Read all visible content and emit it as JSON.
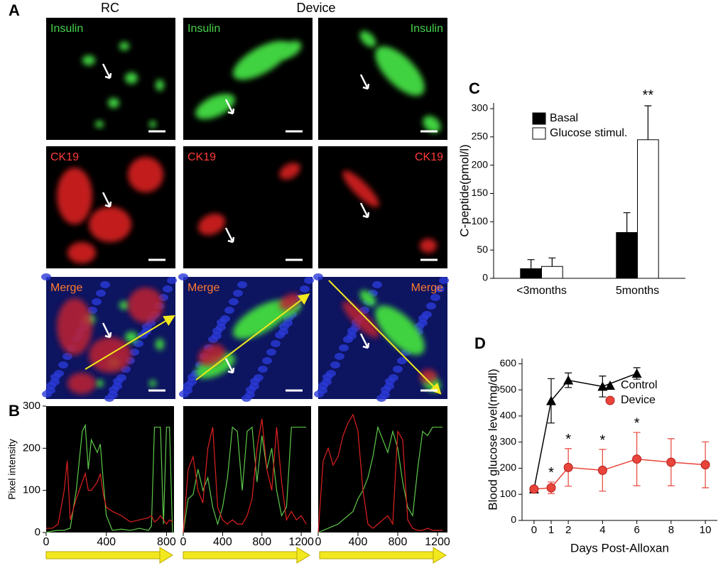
{
  "figure": {
    "panel_labels": [
      "A",
      "B",
      "C",
      "D"
    ],
    "columns": [
      "RC",
      "Device"
    ],
    "image_labels": [
      [
        "Insulin",
        "Insulin",
        "Insulin"
      ],
      [
        "CK19",
        "CK19",
        "CK19"
      ],
      [
        "Merge",
        "Merge",
        "Merge"
      ]
    ]
  },
  "chart_data": [
    {
      "type": "line",
      "ylabel": "Pixel intensity",
      "background": "#000000",
      "x": [
        0,
        40,
        80,
        120,
        140,
        160,
        200,
        240,
        260,
        280,
        300,
        340,
        360,
        380,
        400,
        440,
        500,
        560,
        620,
        680,
        700,
        720,
        740,
        760,
        780,
        800,
        820,
        840
      ],
      "series": [
        {
          "color": "#5ec94a",
          "values": [
            0,
            3,
            5,
            5,
            8,
            10,
            100,
            240,
            255,
            150,
            220,
            190,
            210,
            120,
            40,
            5,
            8,
            5,
            10,
            5,
            15,
            250,
            250,
            250,
            20,
            250,
            250,
            0
          ]
        },
        {
          "color": "#e02020",
          "values": [
            10,
            10,
            20,
            100,
            170,
            30,
            80,
            120,
            140,
            100,
            100,
            120,
            140,
            90,
            60,
            50,
            40,
            25,
            30,
            35,
            40,
            25,
            30,
            40,
            30,
            20,
            30,
            25
          ]
        }
      ],
      "xlim": [
        0,
        850
      ],
      "xticks": [
        0,
        400,
        800
      ],
      "ylim": [
        0,
        300
      ],
      "yticks": [
        0,
        100,
        200,
        300
      ]
    },
    {
      "type": "line",
      "background": "#000000",
      "x": [
        0,
        50,
        100,
        150,
        200,
        250,
        300,
        350,
        400,
        450,
        500,
        550,
        600,
        650,
        700,
        750,
        800,
        850,
        900,
        950,
        1000,
        1050,
        1100,
        1150,
        1200,
        1250
      ],
      "series": [
        {
          "color": "#5ec94a",
          "values": [
            0,
            80,
            90,
            150,
            100,
            130,
            60,
            20,
            60,
            130,
            250,
            240,
            100,
            240,
            250,
            120,
            230,
            150,
            200,
            100,
            40,
            60,
            250,
            250,
            250,
            250
          ]
        },
        {
          "color": "#e02020",
          "values": [
            0,
            150,
            180,
            100,
            70,
            200,
            250,
            60,
            30,
            20,
            30,
            20,
            20,
            40,
            80,
            200,
            270,
            150,
            100,
            250,
            120,
            30,
            50,
            30,
            40,
            20
          ]
        }
      ],
      "xlim": [
        0,
        1300
      ],
      "xticks": [
        0,
        400,
        800,
        1200
      ],
      "ylim": [
        0,
        300
      ]
    },
    {
      "type": "line",
      "background": "#000000",
      "x": [
        0,
        50,
        100,
        150,
        200,
        250,
        300,
        350,
        400,
        450,
        500,
        550,
        600,
        650,
        700,
        750,
        800,
        850,
        900,
        950,
        1000,
        1050,
        1100,
        1150,
        1200,
        1250
      ],
      "series": [
        {
          "color": "#5ec94a",
          "values": [
            0,
            5,
            10,
            15,
            20,
            30,
            40,
            50,
            80,
            100,
            130,
            180,
            250,
            220,
            190,
            240,
            200,
            120,
            60,
            40,
            150,
            240,
            230,
            250,
            250,
            250
          ]
        },
        {
          "color": "#e02020",
          "values": [
            0,
            170,
            200,
            160,
            180,
            230,
            260,
            280,
            240,
            100,
            20,
            10,
            20,
            30,
            40,
            20,
            240,
            220,
            30,
            10,
            5,
            5,
            10,
            5,
            5,
            5
          ]
        }
      ],
      "xlim": [
        0,
        1300
      ],
      "xticks": [
        0,
        400,
        800,
        1200
      ],
      "ylim": [
        0,
        300
      ]
    },
    {
      "type": "bar",
      "ylabel": "C-peptide(pmol/l)",
      "categories": [
        "<3months",
        "5months"
      ],
      "series": [
        {
          "name": "Basal",
          "color": "#000000",
          "values": [
            17,
            81
          ],
          "errors": [
            16,
            35
          ]
        },
        {
          "name": "Glucose stimul.",
          "color": "#ffffff",
          "values": [
            21,
            245
          ],
          "errors": [
            15,
            60
          ],
          "significance": [
            null,
            "**"
          ]
        }
      ],
      "ylim": [
        0,
        310
      ],
      "yticks": [
        0,
        50,
        100,
        150,
        200,
        250,
        300
      ],
      "legend": "upper left"
    },
    {
      "type": "line",
      "xlabel": "Days Post-Alloxan",
      "ylabel": "Blood glucose level(mg/dl)",
      "x": [
        0,
        1,
        2,
        4,
        6,
        8,
        10
      ],
      "series": [
        {
          "name": "Control",
          "color": "#000000",
          "marker": "triangle",
          "values": [
            120,
            458,
            537,
            513,
            563,
            null,
            null
          ],
          "errors": [
            5,
            85,
            28,
            40,
            22,
            null,
            null
          ]
        },
        {
          "name": "Device",
          "color": "#e8443a",
          "marker": "circle",
          "values": [
            120,
            125,
            203,
            192,
            235,
            223,
            213
          ],
          "errors": [
            5,
            22,
            72,
            80,
            102,
            90,
            88
          ],
          "significance": [
            null,
            "*",
            "*",
            "*",
            "*",
            null,
            null
          ]
        }
      ],
      "xlim": [
        -0.7,
        10.7
      ],
      "xticks": [
        0,
        1,
        2,
        4,
        6,
        8,
        10
      ],
      "ylim": [
        0,
        620
      ],
      "yticks": [
        0,
        100,
        200,
        300,
        400,
        500,
        600
      ],
      "legend": "upper right"
    }
  ]
}
